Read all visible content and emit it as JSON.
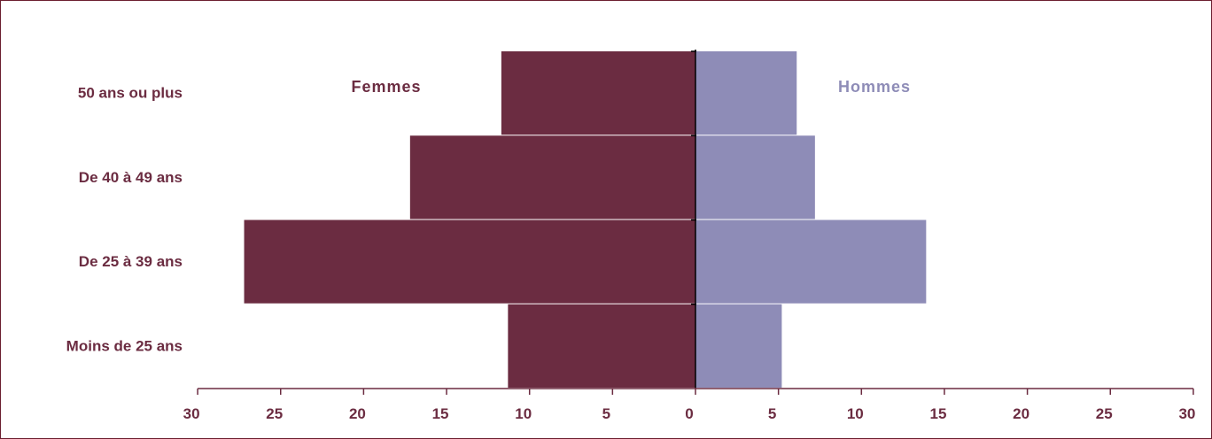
{
  "chart_data": {
    "type": "bar",
    "orientation": "horizontal",
    "subtype": "population-pyramid",
    "categories": [
      "50 ans ou plus",
      "De 40 à 49 ans",
      "De 25 à 39 ans",
      "Moins de 25 ans"
    ],
    "series": [
      {
        "name": "Femmes",
        "side": "left",
        "color": "#6b2c41",
        "values": [
          11.7,
          17.2,
          27.2,
          11.3
        ]
      },
      {
        "name": "Hommes",
        "side": "right",
        "color": "#8e8cb7",
        "values": [
          6.1,
          7.2,
          13.9,
          5.2
        ]
      }
    ],
    "xlim": [
      -30,
      30
    ],
    "xticks": [
      30,
      25,
      20,
      15,
      10,
      5,
      0,
      5,
      10,
      15,
      20,
      25,
      30
    ],
    "grid": false,
    "label_color": "#6b2c41",
    "axis_color": "#6b2c41"
  }
}
